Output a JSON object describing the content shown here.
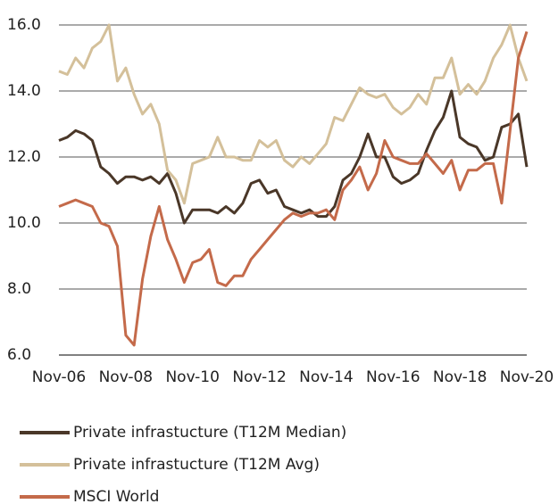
{
  "chart_data": {
    "type": "line",
    "categories": [
      "Nov-06",
      null,
      null,
      null,
      null,
      null,
      null,
      null,
      "Nov-08",
      null,
      null,
      null,
      null,
      null,
      null,
      null,
      "Nov-10",
      null,
      null,
      null,
      null,
      null,
      null,
      null,
      "Nov-12",
      null,
      null,
      null,
      null,
      null,
      null,
      null,
      "Nov-14",
      null,
      null,
      null,
      null,
      null,
      null,
      null,
      "Nov-16",
      null,
      null,
      null,
      null,
      null,
      null,
      null,
      "Nov-18",
      null,
      null,
      null,
      null,
      null,
      null,
      null,
      "Nov-20"
    ],
    "series": [
      {
        "name": "Private infrastucture (T12M Median)",
        "color": "#4a3728",
        "values": [
          12.5,
          12.6,
          12.8,
          12.7,
          12.5,
          11.7,
          11.5,
          11.2,
          11.4,
          11.4,
          11.3,
          11.4,
          11.2,
          11.5,
          10.9,
          10.0,
          10.4,
          10.4,
          10.4,
          10.3,
          10.5,
          10.3,
          10.6,
          11.2,
          11.3,
          10.9,
          11.0,
          10.5,
          10.4,
          10.3,
          10.4,
          10.2,
          10.2,
          10.5,
          11.3,
          11.5,
          12.0,
          12.7,
          12.0,
          12.0,
          11.4,
          11.2,
          11.3,
          11.5,
          12.2,
          12.8,
          13.2,
          14.0,
          12.6,
          12.4,
          12.3,
          11.9,
          12.0,
          12.9,
          13.0,
          13.3,
          11.7
        ]
      },
      {
        "name": "Private infrastucture (T12M Avg)",
        "color": "#d4c09a",
        "values": [
          14.6,
          14.5,
          15.0,
          14.7,
          15.3,
          15.5,
          16.0,
          14.3,
          14.7,
          13.9,
          13.3,
          13.6,
          13.0,
          11.6,
          11.3,
          10.6,
          11.8,
          11.9,
          12.0,
          12.6,
          12.0,
          12.0,
          11.9,
          11.9,
          12.5,
          12.3,
          12.5,
          11.9,
          11.7,
          12.0,
          11.8,
          12.1,
          12.4,
          13.2,
          13.1,
          13.6,
          14.1,
          13.9,
          13.8,
          13.9,
          13.5,
          13.3,
          13.5,
          13.9,
          13.6,
          14.4,
          14.4,
          15.0,
          13.9,
          14.2,
          13.9,
          14.3,
          15.0,
          15.4,
          16.0,
          15.0,
          14.3
        ]
      },
      {
        "name": "MSCI World",
        "color": "#c46a4a",
        "values": [
          10.5,
          10.6,
          10.7,
          10.6,
          10.5,
          10.0,
          9.9,
          9.3,
          6.6,
          6.3,
          8.3,
          9.6,
          10.5,
          9.5,
          8.9,
          8.2,
          8.8,
          8.9,
          9.2,
          8.2,
          8.1,
          8.4,
          8.4,
          8.9,
          9.2,
          9.5,
          9.8,
          10.1,
          10.3,
          10.2,
          10.3,
          10.3,
          10.4,
          10.1,
          11.0,
          11.3,
          11.7,
          11.0,
          11.5,
          12.5,
          12.0,
          11.9,
          11.8,
          11.8,
          12.1,
          11.8,
          11.5,
          11.9,
          11.0,
          11.6,
          11.6,
          11.8,
          11.8,
          10.6,
          12.8,
          15.0,
          15.8
        ]
      }
    ],
    "ylim": [
      6,
      16
    ],
    "yticks": [
      {
        "value": 6,
        "label": "6.0"
      },
      {
        "value": 8,
        "label": "8.0"
      },
      {
        "value": 10,
        "label": "10.0"
      },
      {
        "value": 12,
        "label": "12.0"
      },
      {
        "value": 14,
        "label": "14.0"
      },
      {
        "value": 16,
        "label": "16.0"
      }
    ],
    "grid": true
  }
}
